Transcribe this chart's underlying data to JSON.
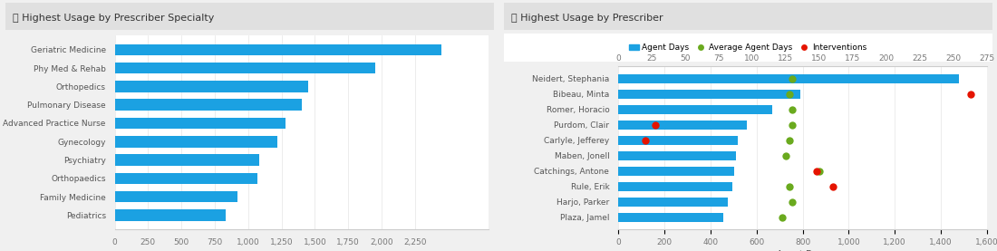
{
  "left_title": "ⓘ Highest Usage by Prescriber Specialty",
  "right_title": "ⓘ Highest Usage by Prescriber",
  "specialty_labels": [
    "Geriatric Medicine",
    "Phy Med & Rehab",
    "Orthopedics",
    "Pulmonary Disease",
    "Advanced Practice Nurse",
    "Gynecology",
    "Psychiatry",
    "Orthopaedics",
    "Family Medicine",
    "Pediatrics"
  ],
  "specialty_values": [
    2450,
    1950,
    1450,
    1400,
    1280,
    1220,
    1080,
    1070,
    920,
    830
  ],
  "specialty_xlim": [
    0,
    2800
  ],
  "specialty_xticks": [
    0,
    250,
    500,
    750,
    1000,
    1250,
    1500,
    1750,
    2000,
    2250
  ],
  "specialty_xtick_labels": [
    "0",
    "250",
    "500",
    "750",
    "1,000",
    "1,250",
    "1,500",
    "1,750",
    "2,000",
    "2,250"
  ],
  "prescriber_labels": [
    "Neidert, Stephania",
    "Bibeau, Minta",
    "Romer, Horacio",
    "Purdom, Clair",
    "Carlyle, Jefferey",
    "Maben, Jonell",
    "Catchings, Antone",
    "Rule, Erik",
    "Harjo, Parker",
    "Plaza, Jamel"
  ],
  "prescriber_values": [
    1480,
    790,
    670,
    560,
    520,
    510,
    505,
    495,
    475,
    455
  ],
  "prescriber_avg_days_top": [
    130,
    128,
    130,
    130,
    128,
    125,
    150,
    128,
    130,
    122
  ],
  "prescriber_interventions_top": [
    null,
    null,
    null,
    28,
    20,
    null,
    148,
    160,
    null,
    null
  ],
  "prescriber_interventions_bottom": [
    null,
    1530,
    null,
    null,
    null,
    null,
    null,
    null,
    null,
    null
  ],
  "prescriber_xlim": [
    0,
    1600
  ],
  "prescriber_bottom_xticks": [
    0,
    200,
    400,
    600,
    800,
    1000,
    1200,
    1400,
    1600
  ],
  "prescriber_bottom_xtick_labels": [
    "0",
    "200",
    "400",
    "600",
    "800",
    "1,000",
    "1,200",
    "1,400",
    "1,600"
  ],
  "prescriber_top_xticks": [
    0,
    25,
    50,
    75,
    100,
    125,
    150,
    175,
    200,
    225,
    250,
    275
  ],
  "prescriber_top_xtick_labels": [
    "0",
    "25",
    "50",
    "75",
    "100",
    "125",
    "150",
    "175",
    "200",
    "225",
    "250",
    "275"
  ],
  "prescriber_xlabel": "Agent Days",
  "bar_color": "#1ba1e2",
  "avg_color": "#6aaa1e",
  "intervention_color": "#e51400",
  "background_color": "#f0f0f0",
  "panel_bg": "#ffffff",
  "title_bg": "#e0e0e0",
  "title_fontsize": 8,
  "tick_fontsize": 6.5,
  "label_fontsize": 6.5
}
